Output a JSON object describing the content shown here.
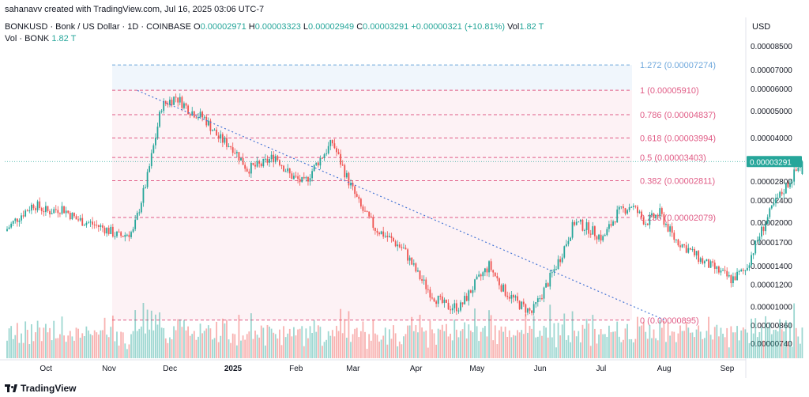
{
  "header": {
    "author_line": "sahanavv created with TradingView.com, Jul 16, 2025 03:06 UTC-7",
    "symbol": "BONKUSD · Bonk / US Dollar · 1D · COINBASE",
    "o_label": "O",
    "o_value": "0.00002971",
    "h_label": "H",
    "h_value": "0.00003323",
    "l_label": "L",
    "l_value": "0.00002949",
    "c_label": "C",
    "c_value": "0.00003291",
    "change": "+0.00000321 (+10.81%)",
    "vol_label": "Vol",
    "vol_value": "1.82 T",
    "vol_series": "Vol · BONK",
    "vol_series_value": "1.82 T"
  },
  "axis_currency": "USD",
  "footer_brand": "TradingView",
  "colors": {
    "up": "#26a69a",
    "down": "#ef5350",
    "fib": "#e05c86",
    "fib_ext": "#6fa8dc",
    "trend": "#4a78d6",
    "last_price_bg": "#26a69a"
  },
  "chart_data": {
    "type": "candlestick",
    "scale": "log",
    "last_price": "0.00003291",
    "x_ticks": [
      "Oct",
      "Nov",
      "Dec",
      "2025",
      "Feb",
      "Mar",
      "Apr",
      "May",
      "Jun",
      "Jul",
      "Aug",
      "Sep"
    ],
    "y_ticks": [
      "0.00008500",
      "0.00007000",
      "0.00006000",
      "0.00005000",
      "0.00004000",
      "0.00002800",
      "0.00002400",
      "0.00002000",
      "0.00001700",
      "0.00001400",
      "0.00001200",
      "0.00001000",
      "0.00000860",
      "0.00000740"
    ],
    "fib_levels": [
      {
        "label": "1.272 (0.00007274)",
        "value": 7.274e-05,
        "ext": true
      },
      {
        "label": "1 (0.00005910)",
        "value": 5.91e-05
      },
      {
        "label": "0.786 (0.00004837)",
        "value": 4.837e-05
      },
      {
        "label": "0.618 (0.00003994)",
        "value": 3.994e-05
      },
      {
        "label": "0.5 (0.00003403)",
        "value": 3.403e-05
      },
      {
        "label": "0.382 (0.00002811)",
        "value": 2.811e-05
      },
      {
        "label": "0.236 (0.00002079)",
        "value": 2.079e-05
      },
      {
        "label": "0 (0.00000895)",
        "value": 8.95e-06
      }
    ],
    "trendline": {
      "from": {
        "date": "2024-11-15",
        "value": 5.9e-05
      },
      "to": {
        "date": "2025-08-02",
        "value": 8.9e-06
      }
    },
    "closes_weekly": [
      1.86e-05,
      2.1e-05,
      2.32e-05,
      2.18e-05,
      2.25e-05,
      2.05e-05,
      1.98e-05,
      1.9e-05,
      1.78e-05,
      1.85e-05,
      2.9e-05,
      5.2e-05,
      5.6e-05,
      5e-05,
      4.7e-05,
      4e-05,
      3.7e-05,
      3.1e-05,
      3.2e-05,
      3.45e-05,
      2.95e-05,
      2.75e-05,
      3.3e-05,
      3.85e-05,
      2.9e-05,
      2.25e-05,
      1.9e-05,
      1.75e-05,
      1.6e-05,
      1.3e-05,
      1.1e-05,
      1e-05,
      1e-05,
      1.2e-05,
      1.4e-05,
      1.15e-05,
      1.03e-05,
      9.5e-06,
      1.18e-05,
      1.5e-05,
      2e-05,
      1.9e-05,
      1.75e-05,
      2.15e-05,
      2.3e-05,
      2e-05,
      2.15e-05,
      1.75e-05,
      1.6e-05,
      1.45e-05,
      1.35e-05,
      1.25e-05,
      1.35e-05,
      1.8e-05,
      2.3e-05,
      2.75e-05,
      3.29e-05
    ]
  }
}
